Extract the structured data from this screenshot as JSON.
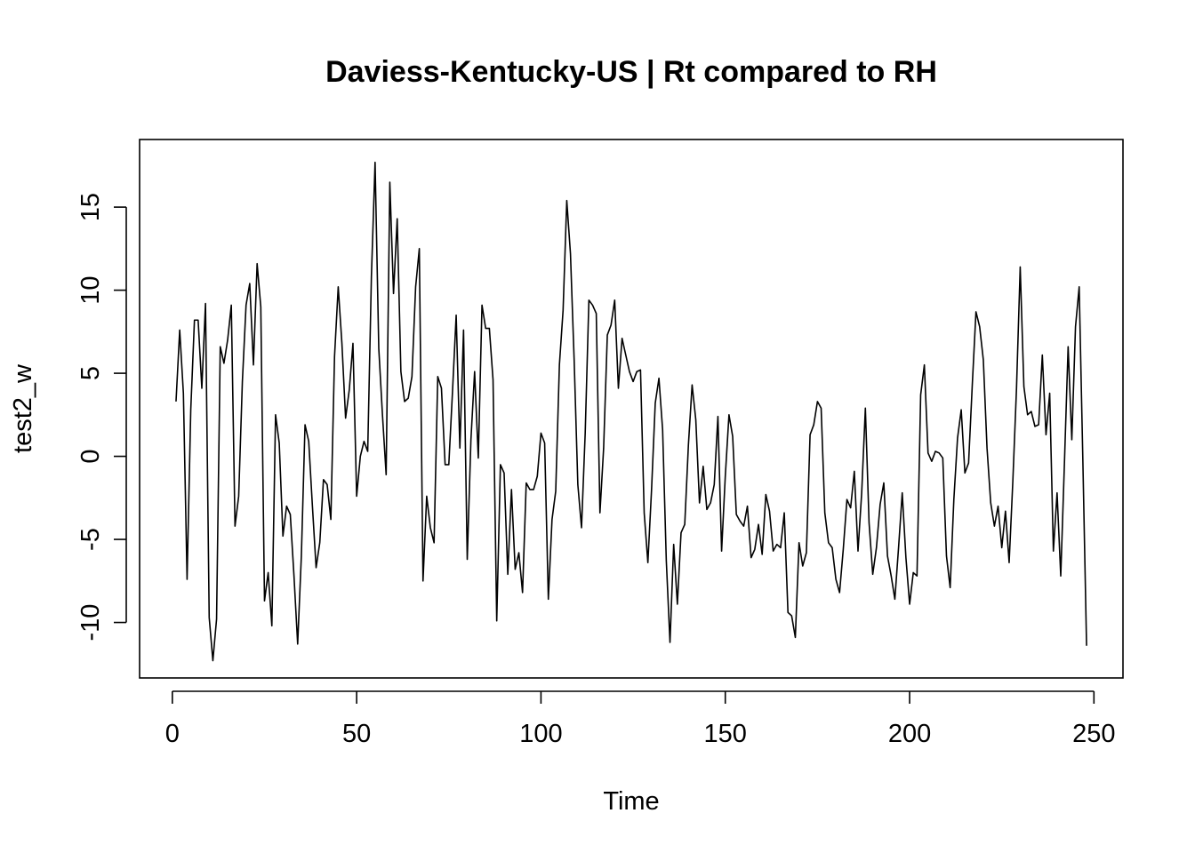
{
  "chart_data": {
    "type": "line",
    "title": "Daviess-Kentucky-US | Rt compared to RH",
    "xlabel": "Time",
    "ylabel": "test2_w",
    "xlim": [
      -8.88,
      257.88
    ],
    "ylim": [
      -13.34,
      19.07
    ],
    "x_ticks": [
      0,
      50,
      100,
      150,
      200,
      250
    ],
    "x_tick_labels": [
      "0",
      "50",
      "100",
      "150",
      "200",
      "250"
    ],
    "y_ticks": [
      -10,
      -5,
      0,
      5,
      10,
      15
    ],
    "y_tick_labels": [
      "-10",
      "-5",
      "0",
      "5",
      "10",
      "15"
    ],
    "grid": false,
    "series": [
      {
        "name": "test2_w",
        "x_start": 1,
        "values": [
          3.3,
          7.6,
          3.8,
          -7.4,
          2.8,
          8.2,
          8.2,
          4.1,
          9.2,
          -9.7,
          -12.3,
          -9.8,
          6.6,
          5.6,
          7.0,
          9.1,
          -4.2,
          -2.4,
          4.5,
          9.1,
          10.4,
          5.5,
          11.6,
          9.0,
          -8.7,
          -7.0,
          -10.2,
          2.5,
          0.8,
          -4.8,
          -3.0,
          -3.5,
          -7.2,
          -11.3,
          -6.0,
          1.9,
          0.9,
          -3.0,
          -6.7,
          -5.2,
          -1.4,
          -1.7,
          -3.8,
          6.0,
          10.2,
          6.8,
          2.3,
          4.0,
          6.8,
          -2.4,
          0.0,
          0.9,
          0.3,
          10.8,
          17.7,
          6.5,
          2.5,
          -1.1,
          16.5,
          9.8,
          14.3,
          5.1,
          3.3,
          3.5,
          4.8,
          10.2,
          12.5,
          -7.5,
          -2.4,
          -4.3,
          -5.2,
          4.8,
          4.1,
          -0.5,
          -0.5,
          3.9,
          8.5,
          0.5,
          7.6,
          -6.2,
          1.0,
          5.1,
          -0.1,
          9.1,
          7.7,
          7.7,
          4.6,
          -9.9,
          -0.5,
          -1.0,
          -7.1,
          -2.0,
          -6.8,
          -5.8,
          -8.2,
          -1.6,
          -2.0,
          -2.0,
          -1.2,
          1.4,
          0.8,
          -8.6,
          -3.8,
          -2.1,
          5.5,
          8.8,
          15.4,
          12.2,
          5.8,
          -1.7,
          -4.3,
          1.4,
          9.4,
          9.1,
          8.6,
          -3.4,
          0.5,
          7.3,
          7.9,
          9.4,
          4.1,
          7.1,
          6.1,
          5.1,
          4.5,
          5.1,
          5.2,
          -3.4,
          -6.4,
          -2.0,
          3.2,
          4.7,
          1.6,
          -6.3,
          -11.2,
          -5.3,
          -8.9,
          -4.6,
          -4.1,
          0.7,
          4.3,
          2.2,
          -2.8,
          -0.6,
          -3.2,
          -2.8,
          -1.7,
          2.4,
          -5.7,
          -1.2,
          2.5,
          1.2,
          -3.5,
          -3.9,
          -4.2,
          -3.0,
          -6.1,
          -5.6,
          -4.1,
          -5.9,
          -2.3,
          -3.3,
          -5.7,
          -5.3,
          -5.5,
          -3.4,
          -9.4,
          -9.6,
          -10.9,
          -5.2,
          -6.6,
          -5.8,
          1.3,
          1.9,
          3.3,
          2.9,
          -3.4,
          -5.2,
          -5.5,
          -7.4,
          -8.2,
          -5.6,
          -2.6,
          -3.1,
          -0.9,
          -5.7,
          -2.2,
          2.9,
          -4.0,
          -7.1,
          -5.5,
          -2.9,
          -1.6,
          -6.0,
          -7.2,
          -8.6,
          -5.5,
          -2.2,
          -6.1,
          -8.9,
          -7.0,
          -7.2,
          3.7,
          5.5,
          0.2,
          -0.3,
          0.3,
          0.2,
          -0.1,
          -6.0,
          -7.9,
          -2.6,
          1.1,
          2.8,
          -1.0,
          -0.4,
          4.3,
          8.7,
          7.8,
          5.8,
          0.5,
          -2.8,
          -4.2,
          -3.0,
          -5.5,
          -3.3,
          -6.4,
          -1.5,
          4.1,
          11.4,
          4.2,
          2.5,
          2.7,
          1.8,
          1.9,
          6.1,
          1.3,
          3.8,
          -5.7,
          -2.2,
          -7.2,
          -0.4,
          6.6,
          1.0,
          7.8,
          10.2,
          -0.3,
          -11.4
        ]
      }
    ]
  }
}
